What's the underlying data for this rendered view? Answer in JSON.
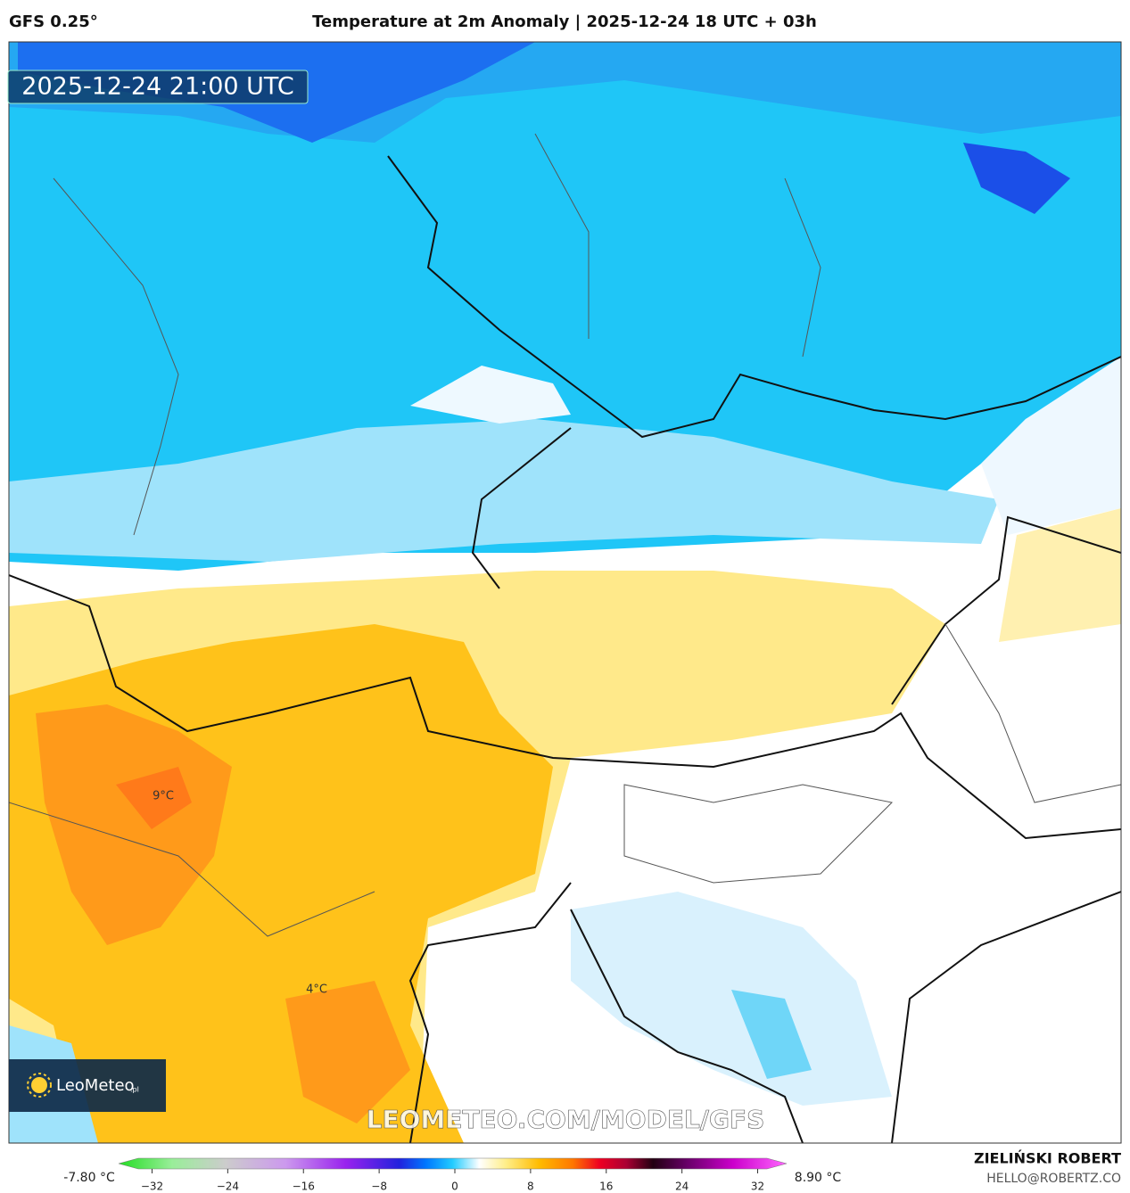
{
  "header": {
    "model": "GFS 0.25°",
    "title": "Temperature at 2m Anomaly | 2025-12-24 18 UTC + 03h"
  },
  "map": {
    "valid_time": "2025-12-24 21:00 UTC",
    "labels": [
      {
        "text": "9°C"
      },
      {
        "text": "4°C"
      }
    ],
    "watermark": "LEOMETEO.COM/MODEL/GFS",
    "logo": {
      "name": "LeoMeteo",
      "suffix": ".pl"
    }
  },
  "colorbar": {
    "min_label": "-7.80 °C",
    "max_label": "8.90 °C",
    "ticks": [
      {
        "value": -32,
        "label": "−32"
      },
      {
        "value": -24,
        "label": "−24"
      },
      {
        "value": -16,
        "label": "−16"
      },
      {
        "value": -8,
        "label": "−8"
      },
      0,
      8,
      16,
      24,
      32
    ]
  },
  "footer": {
    "author": "ZIELIŃSKI ROBERT",
    "email": "HELLO@ROBERTZ.CO"
  }
}
